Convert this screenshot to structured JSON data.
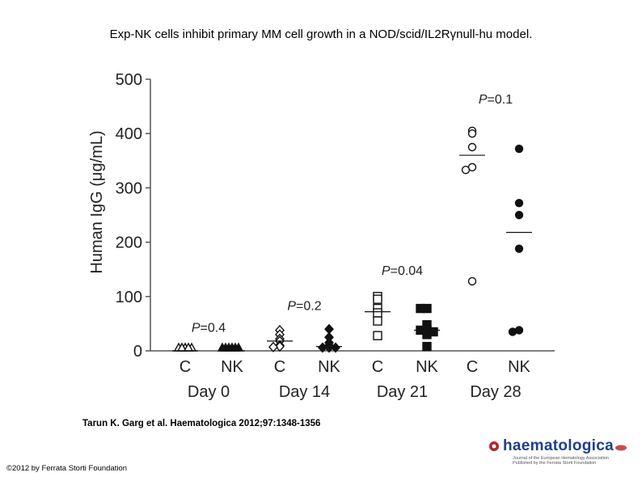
{
  "slide": {
    "title": "Exp-NK cells inhibit primary MM cell growth in a NOD/scid/IL2Rγnull-hu model.",
    "citation": "Tarun K. Garg et al. Haematologica 2012;97:1348-1356",
    "copyright": "©2012 by Ferrata Storti Foundation",
    "logo_text": "haematologica",
    "logo_subtext": "Journal of the European Hematology Association Published by the Ferrata Storti Foundation"
  },
  "chart_data": {
    "type": "scatter",
    "title": "Exp-NK cells inhibit primary MM cell growth in a NOD/scid/IL2Rγnull-hu model.",
    "ylabel": "Human IgG (μg/mL)",
    "xlabel": "",
    "ylim": [
      0,
      500
    ],
    "yticks": [
      0,
      100,
      200,
      300,
      400,
      500
    ],
    "groups": [
      {
        "day": "Day 0",
        "p_label": "P=0.4",
        "p_y": 35,
        "series": [
          {
            "label": "C",
            "marker": "triangle",
            "fill": "open",
            "values": [
              0,
              0,
              0,
              0,
              0
            ],
            "mean": 0
          },
          {
            "label": "NK",
            "marker": "triangle",
            "fill": "filled",
            "values": [
              0,
              0,
              0,
              0,
              0,
              0
            ],
            "mean": 0
          }
        ]
      },
      {
        "day": "Day 14",
        "p_label": "P=0.2",
        "p_y": 75,
        "series": [
          {
            "label": "C",
            "marker": "diamond",
            "fill": "open",
            "values": [
              38,
              30,
              22,
              18,
              10,
              8,
              7
            ],
            "mean": 18
          },
          {
            "label": "NK",
            "marker": "diamond",
            "fill": "filled",
            "values": [
              40,
              25,
              15,
              10,
              8,
              5,
              3,
              2
            ],
            "mean": 8
          }
        ]
      },
      {
        "day": "Day 21",
        "p_label": "P=0.04",
        "p_y": 140,
        "series": [
          {
            "label": "C",
            "marker": "square",
            "fill": "open",
            "values": [
              100,
              95,
              78,
              70,
              55,
              28
            ],
            "mean": 72
          },
          {
            "label": "NK",
            "marker": "square",
            "fill": "filled",
            "values": [
              78,
              78,
              48,
              38,
              38,
              35,
              30,
              8
            ],
            "mean": 38
          }
        ]
      },
      {
        "day": "Day 28",
        "p_label": "P=0.1",
        "p_y": 455,
        "series": [
          {
            "label": "C",
            "marker": "circle",
            "fill": "open",
            "values": [
              405,
              400,
              375,
              338,
              333,
              128
            ],
            "mean": 360
          },
          {
            "label": "NK",
            "marker": "circle",
            "fill": "filled",
            "values": [
              372,
              272,
              250,
              188,
              38,
              35
            ],
            "mean": 218
          }
        ]
      }
    ]
  }
}
